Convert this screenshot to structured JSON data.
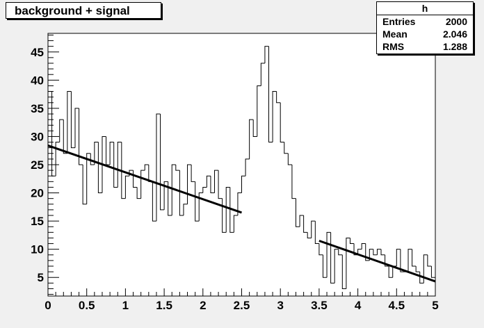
{
  "chart_data": {
    "type": "histogram",
    "title": "background + signal",
    "xlim": [
      0,
      5
    ],
    "ylim": [
      1.7,
      48.3
    ],
    "x_ticks": [
      0,
      0.5,
      1,
      1.5,
      2,
      2.5,
      3,
      3.5,
      4,
      4.5,
      5
    ],
    "x_tick_labels": [
      "0",
      "0.5",
      "1",
      "1.5",
      "2",
      "2.5",
      "3",
      "3.5",
      "4",
      "4.5",
      "5"
    ],
    "y_ticks": [
      5,
      10,
      15,
      20,
      25,
      30,
      35,
      40,
      45
    ],
    "y_tick_labels": [
      "5",
      "10",
      "15",
      "20",
      "25",
      "30",
      "35",
      "40",
      "45"
    ],
    "grid": false,
    "bin_width": 0.05,
    "bin_edges_start": 0,
    "bin_values": [
      38,
      23,
      29,
      33,
      27,
      38,
      28,
      35,
      25,
      18,
      27,
      25,
      29,
      20,
      30,
      25,
      29,
      21,
      29,
      19,
      23,
      24,
      21,
      19,
      24,
      25,
      22,
      15,
      34,
      17,
      22,
      16,
      25,
      24,
      16,
      18,
      25,
      22,
      15,
      20,
      21,
      23,
      20,
      24,
      19,
      13,
      21,
      13,
      16,
      20,
      23,
      26,
      33,
      30,
      39,
      43,
      46,
      29,
      38,
      36,
      29,
      27,
      25,
      19,
      14,
      16,
      13,
      12,
      15,
      11,
      9,
      5,
      13,
      4,
      10,
      9,
      3,
      12,
      11,
      9,
      10,
      11,
      8,
      10,
      9,
      10,
      9,
      7,
      5,
      7,
      10,
      6,
      6,
      10,
      7,
      6,
      4,
      9,
      7,
      5
    ],
    "fits": [
      {
        "x_range": [
          0,
          2.5
        ],
        "y_range": [
          28.4,
          16.5
        ]
      },
      {
        "x_range": [
          3.5,
          5
        ],
        "y_range": [
          11.5,
          4.3
        ]
      }
    ],
    "stats": {
      "name": "h",
      "rows": [
        {
          "label": "Entries",
          "value": "2000"
        },
        {
          "label": "Mean",
          "value": "2.046"
        },
        {
          "label": "RMS",
          "value": "1.288"
        }
      ]
    }
  }
}
